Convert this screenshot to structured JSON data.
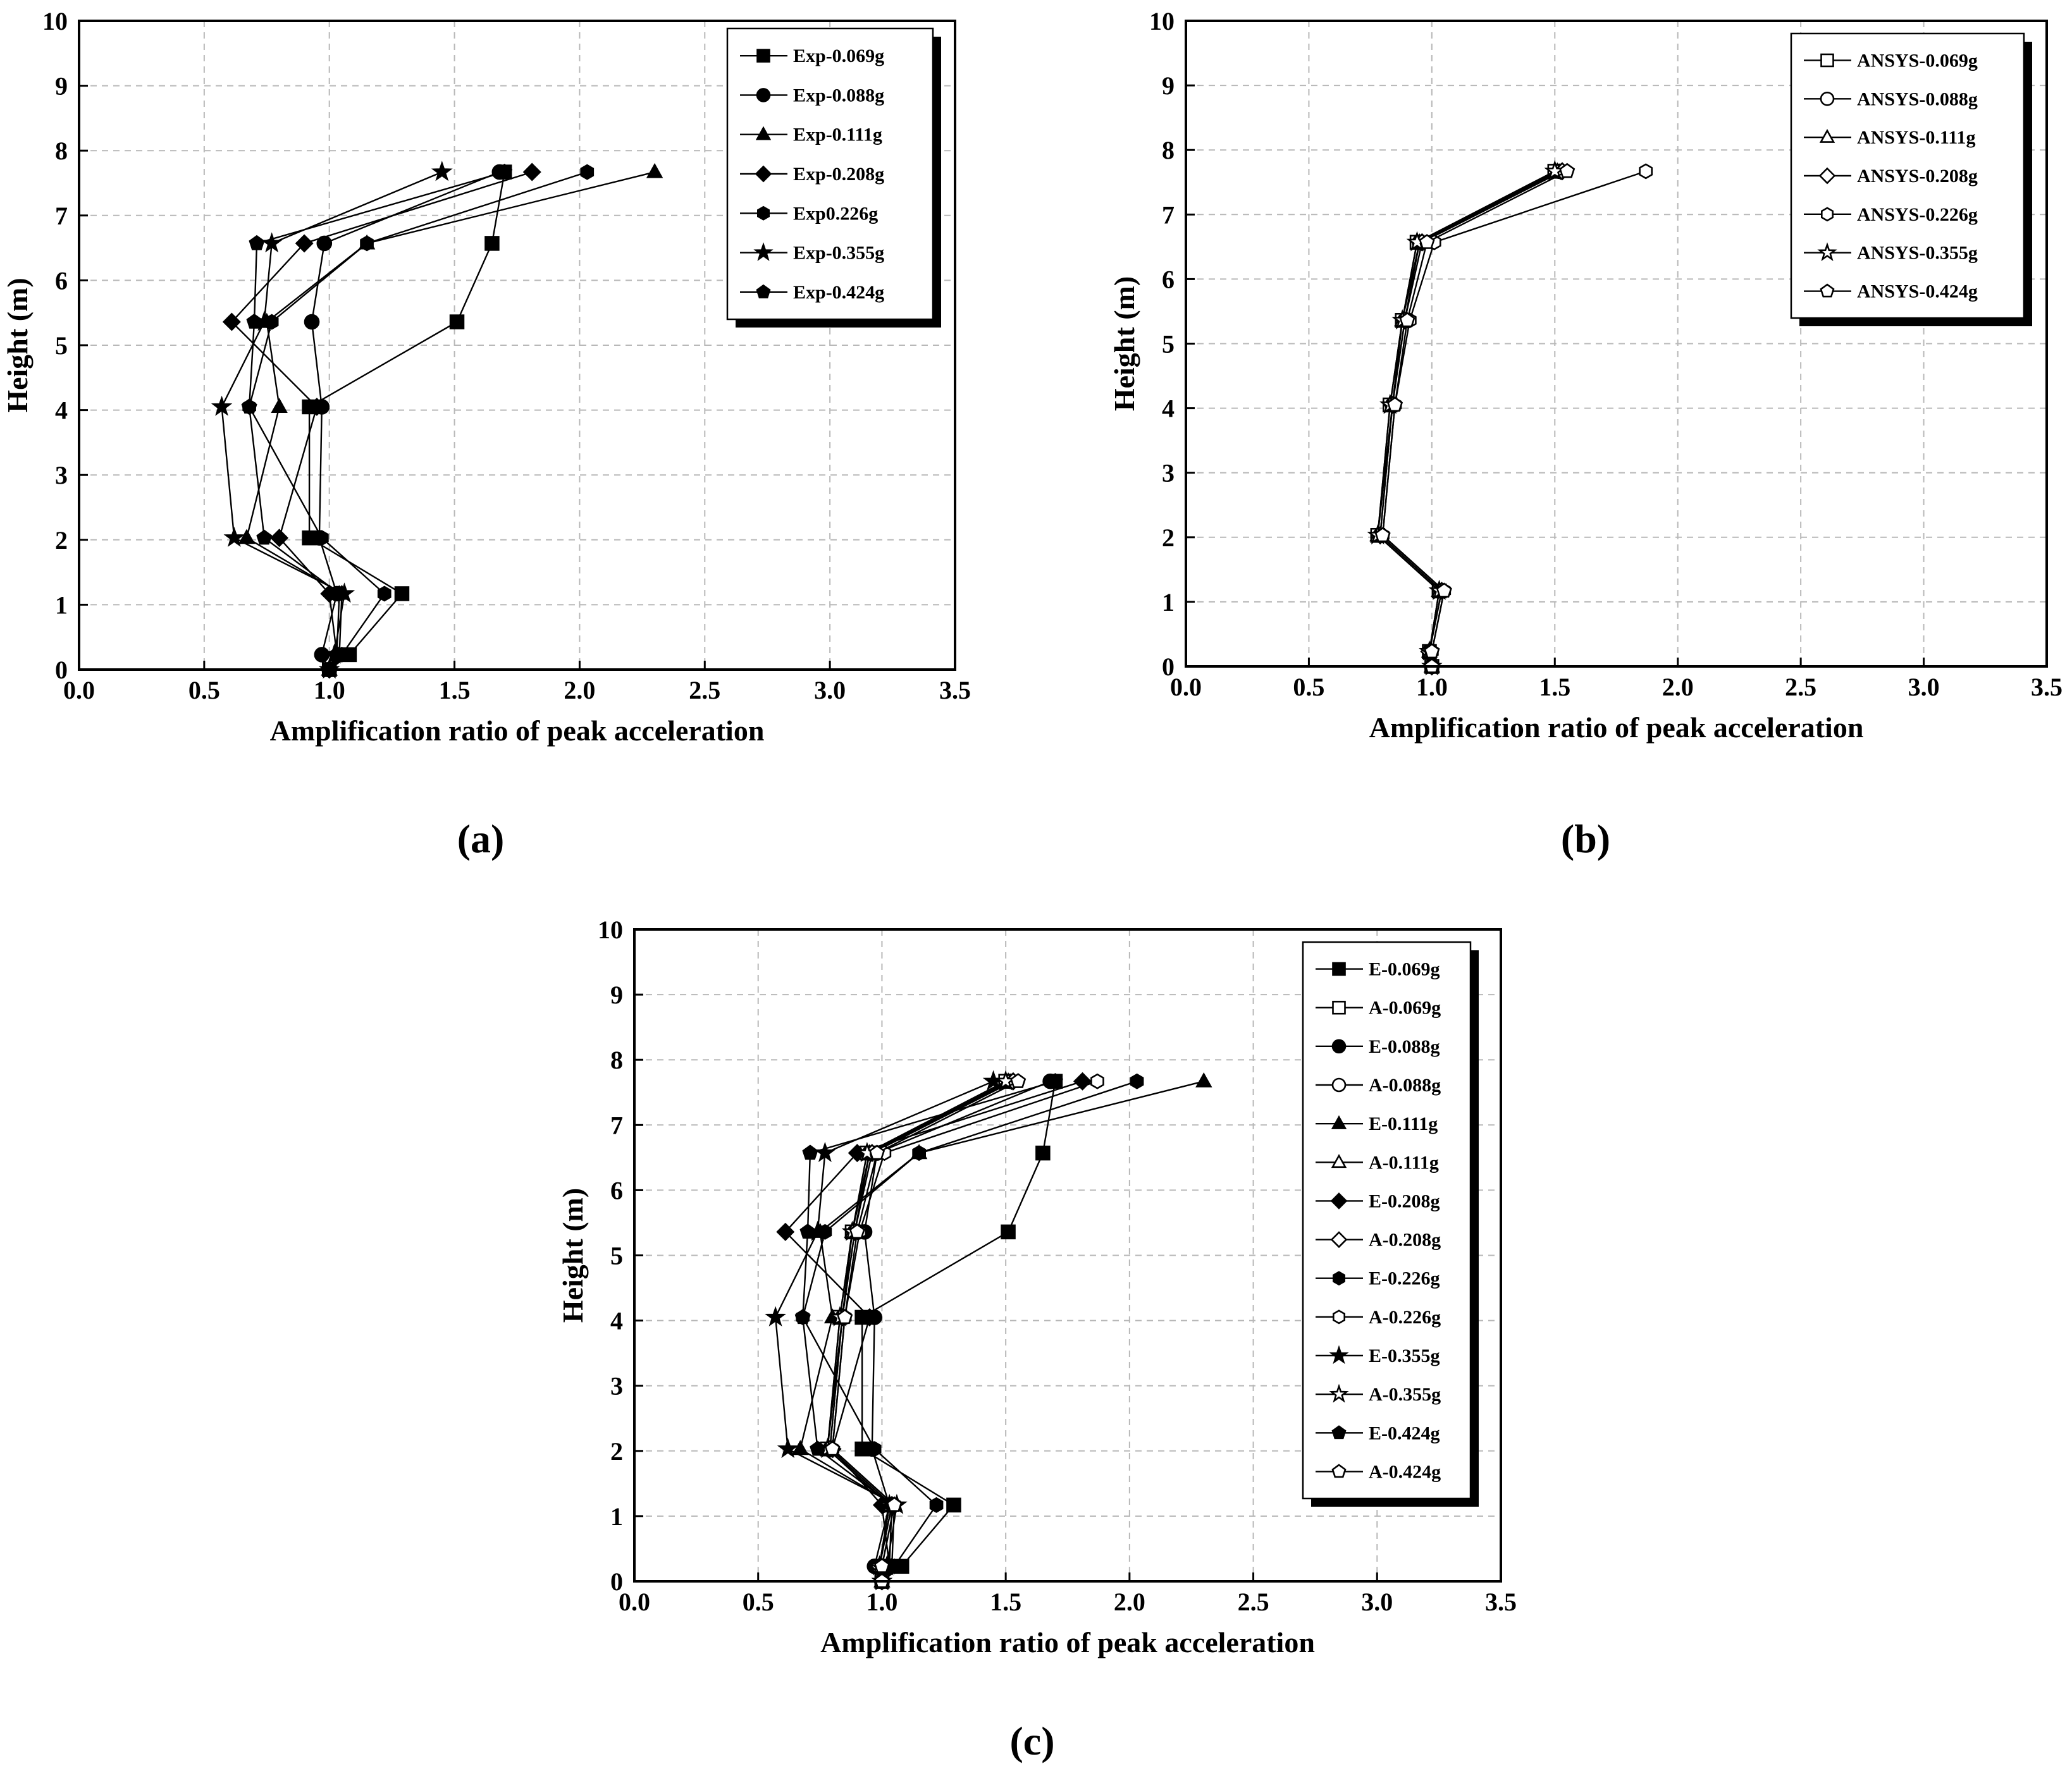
{
  "chart_data": [
    {
      "id": "a",
      "type": "line",
      "caption": "(a)",
      "xlabel": "Amplification ratio of peak acceleration",
      "ylabel": "Height (m)",
      "xlim": [
        0,
        3.5
      ],
      "ylim": [
        0,
        10
      ],
      "xticks": [
        "0.0",
        "0.5",
        "1.0",
        "1.5",
        "2.0",
        "2.5",
        "3.0",
        "3.5"
      ],
      "yticks": [
        "0",
        "1",
        "2",
        "3",
        "4",
        "5",
        "6",
        "7",
        "8",
        "9",
        "10"
      ],
      "grid": true,
      "legend": "top-right",
      "series": [
        {
          "name": "Exp-0.069g",
          "marker": "square",
          "filled": true,
          "x": [
            1.0,
            1.08,
            1.29,
            0.92,
            0.92,
            1.51,
            1.65,
            1.7
          ],
          "y": [
            0.0,
            0.23,
            1.17,
            2.03,
            4.05,
            5.36,
            6.57,
            7.67
          ]
        },
        {
          "name": "Exp-0.088g",
          "marker": "circle",
          "filled": true,
          "x": [
            1.0,
            0.97,
            1.03,
            0.96,
            0.97,
            0.93,
            0.98,
            1.68
          ],
          "y": [
            0.0,
            0.23,
            1.17,
            2.03,
            4.05,
            5.36,
            6.57,
            7.67
          ]
        },
        {
          "name": "Exp-0.111g",
          "marker": "triangle",
          "filled": true,
          "x": [
            1.0,
            1.04,
            1.05,
            0.67,
            0.8,
            0.75,
            1.15,
            2.3
          ],
          "y": [
            0.0,
            0.23,
            1.17,
            2.03,
            4.05,
            5.36,
            6.57,
            7.67
          ]
        },
        {
          "name": "Exp-0.208g",
          "marker": "diamond",
          "filled": true,
          "x": [
            1.0,
            1.03,
            1.0,
            0.8,
            0.95,
            0.61,
            0.9,
            1.81
          ],
          "y": [
            0.0,
            0.23,
            1.17,
            2.03,
            4.05,
            5.36,
            6.57,
            7.67
          ]
        },
        {
          "name": "Exp0.226g",
          "marker": "hexagon",
          "filled": true,
          "x": [
            1.0,
            1.05,
            1.22,
            0.97,
            0.68,
            0.77,
            1.15,
            2.03
          ],
          "y": [
            0.0,
            0.23,
            1.17,
            2.03,
            4.05,
            5.36,
            6.57,
            7.67
          ]
        },
        {
          "name": "Exp-0.355g",
          "marker": "star",
          "filled": true,
          "x": [
            1.0,
            1.02,
            1.06,
            0.62,
            0.57,
            0.74,
            0.77,
            1.45
          ],
          "y": [
            0.0,
            0.23,
            1.17,
            2.03,
            4.05,
            5.36,
            6.57,
            7.67
          ]
        },
        {
          "name": "Exp-0.424g",
          "marker": "pentagon",
          "filled": true,
          "x": [
            1.0,
            1.03,
            1.04,
            0.74,
            0.68,
            0.7,
            0.71,
            1.7
          ],
          "y": [
            0.0,
            0.23,
            1.17,
            2.03,
            4.05,
            5.36,
            6.57,
            7.67
          ]
        }
      ]
    },
    {
      "id": "b",
      "type": "line",
      "caption": "(b)",
      "xlabel": "Amplification ratio of peak acceleration",
      "ylabel": "Height (m)",
      "xlim": [
        0,
        3.5
      ],
      "ylim": [
        0,
        10
      ],
      "xticks": [
        "0.0",
        "0.5",
        "1.0",
        "1.5",
        "2.0",
        "2.5",
        "3.0",
        "3.5"
      ],
      "yticks": [
        "0",
        "1",
        "2",
        "3",
        "4",
        "5",
        "6",
        "7",
        "8",
        "9",
        "10"
      ],
      "grid": true,
      "legend": "top-right",
      "series": [
        {
          "name": "ANSYS-0.069g",
          "marker": "square",
          "filled": false,
          "x": [
            1.0,
            0.99,
            1.03,
            0.78,
            0.83,
            0.88,
            0.94,
            1.5
          ],
          "y": [
            0.0,
            0.23,
            1.17,
            2.03,
            4.05,
            5.36,
            6.57,
            7.67
          ]
        },
        {
          "name": "ANSYS-0.088g",
          "marker": "circle",
          "filled": false,
          "x": [
            1.0,
            0.99,
            1.04,
            0.79,
            0.84,
            0.89,
            0.95,
            1.52
          ],
          "y": [
            0.0,
            0.23,
            1.17,
            2.03,
            4.05,
            5.36,
            6.57,
            7.67
          ]
        },
        {
          "name": "ANSYS-0.111g",
          "marker": "triangle",
          "filled": false,
          "x": [
            1.0,
            0.99,
            1.03,
            0.78,
            0.84,
            0.88,
            0.95,
            1.51
          ],
          "y": [
            0.0,
            0.23,
            1.17,
            2.03,
            4.05,
            5.36,
            6.57,
            7.67
          ]
        },
        {
          "name": "ANSYS-0.208g",
          "marker": "diamond",
          "filled": false,
          "x": [
            1.0,
            0.99,
            1.04,
            0.79,
            0.84,
            0.89,
            0.96,
            1.53
          ],
          "y": [
            0.0,
            0.23,
            1.17,
            2.03,
            4.05,
            5.36,
            6.57,
            7.67
          ]
        },
        {
          "name": "ANSYS-0.226g",
          "marker": "hexagon",
          "filled": false,
          "x": [
            1.0,
            1.0,
            1.05,
            0.8,
            0.85,
            0.91,
            1.01,
            1.87
          ],
          "y": [
            0.0,
            0.23,
            1.17,
            2.03,
            4.05,
            5.36,
            6.57,
            7.67
          ]
        },
        {
          "name": "ANSYS-0.355g",
          "marker": "star",
          "filled": false,
          "x": [
            1.0,
            0.99,
            1.03,
            0.78,
            0.83,
            0.88,
            0.94,
            1.5
          ],
          "y": [
            0.0,
            0.23,
            1.17,
            2.03,
            4.05,
            5.36,
            6.57,
            7.67
          ]
        },
        {
          "name": "ANSYS-0.424g",
          "marker": "pentagon",
          "filled": false,
          "x": [
            1.0,
            1.0,
            1.05,
            0.8,
            0.85,
            0.9,
            0.98,
            1.55
          ],
          "y": [
            0.0,
            0.23,
            1.17,
            2.03,
            4.05,
            5.36,
            6.57,
            7.67
          ]
        }
      ]
    },
    {
      "id": "c",
      "type": "line",
      "caption": "(c)",
      "xlabel": "Amplification ratio of peak acceleration",
      "ylabel": "Height (m)",
      "xlim": [
        0,
        3.5
      ],
      "ylim": [
        0,
        10
      ],
      "xticks": [
        "0.0",
        "0.5",
        "1.0",
        "1.5",
        "2.0",
        "2.5",
        "3.0",
        "3.5"
      ],
      "yticks": [
        "0",
        "1",
        "2",
        "3",
        "4",
        "5",
        "6",
        "7",
        "8",
        "9",
        "10"
      ],
      "grid": true,
      "legend": "top-right",
      "series": [
        {
          "name": "E-0.069g",
          "marker": "square",
          "filled": true,
          "x": [
            1.0,
            1.08,
            1.29,
            0.92,
            0.92,
            1.51,
            1.65,
            1.7
          ],
          "y": [
            0.0,
            0.23,
            1.17,
            2.03,
            4.05,
            5.36,
            6.57,
            7.67
          ]
        },
        {
          "name": "A-0.069g",
          "marker": "square",
          "filled": false,
          "x": [
            1.0,
            0.99,
            1.03,
            0.78,
            0.83,
            0.88,
            0.94,
            1.5
          ],
          "y": [
            0.0,
            0.23,
            1.17,
            2.03,
            4.05,
            5.36,
            6.57,
            7.67
          ]
        },
        {
          "name": "E-0.088g",
          "marker": "circle",
          "filled": true,
          "x": [
            1.0,
            0.97,
            1.03,
            0.96,
            0.97,
            0.93,
            0.98,
            1.68
          ],
          "y": [
            0.0,
            0.23,
            1.17,
            2.03,
            4.05,
            5.36,
            6.57,
            7.67
          ]
        },
        {
          "name": "A-0.088g",
          "marker": "circle",
          "filled": false,
          "x": [
            1.0,
            0.99,
            1.04,
            0.79,
            0.84,
            0.89,
            0.95,
            1.52
          ],
          "y": [
            0.0,
            0.23,
            1.17,
            2.03,
            4.05,
            5.36,
            6.57,
            7.67
          ]
        },
        {
          "name": "E-0.111g",
          "marker": "triangle",
          "filled": true,
          "x": [
            1.0,
            1.04,
            1.05,
            0.67,
            0.8,
            0.75,
            1.15,
            2.3
          ],
          "y": [
            0.0,
            0.23,
            1.17,
            2.03,
            4.05,
            5.36,
            6.57,
            7.67
          ]
        },
        {
          "name": "A-0.111g",
          "marker": "triangle",
          "filled": false,
          "x": [
            1.0,
            0.99,
            1.03,
            0.78,
            0.84,
            0.88,
            0.95,
            1.51
          ],
          "y": [
            0.0,
            0.23,
            1.17,
            2.03,
            4.05,
            5.36,
            6.57,
            7.67
          ]
        },
        {
          "name": "E-0.208g",
          "marker": "diamond",
          "filled": true,
          "x": [
            1.0,
            1.03,
            1.0,
            0.8,
            0.95,
            0.61,
            0.9,
            1.81
          ],
          "y": [
            0.0,
            0.23,
            1.17,
            2.03,
            4.05,
            5.36,
            6.57,
            7.67
          ]
        },
        {
          "name": "A-0.208g",
          "marker": "diamond",
          "filled": false,
          "x": [
            1.0,
            0.99,
            1.04,
            0.79,
            0.84,
            0.89,
            0.96,
            1.53
          ],
          "y": [
            0.0,
            0.23,
            1.17,
            2.03,
            4.05,
            5.36,
            6.57,
            7.67
          ]
        },
        {
          "name": "E-0.226g",
          "marker": "hexagon",
          "filled": true,
          "x": [
            1.0,
            1.05,
            1.22,
            0.97,
            0.68,
            0.77,
            1.15,
            2.03
          ],
          "y": [
            0.0,
            0.23,
            1.17,
            2.03,
            4.05,
            5.36,
            6.57,
            7.67
          ]
        },
        {
          "name": "A-0.226g",
          "marker": "hexagon",
          "filled": false,
          "x": [
            1.0,
            1.0,
            1.05,
            0.8,
            0.85,
            0.91,
            1.01,
            1.87
          ],
          "y": [
            0.0,
            0.23,
            1.17,
            2.03,
            4.05,
            5.36,
            6.57,
            7.67
          ]
        },
        {
          "name": "E-0.355g",
          "marker": "star",
          "filled": true,
          "x": [
            1.0,
            1.02,
            1.06,
            0.62,
            0.57,
            0.74,
            0.77,
            1.45
          ],
          "y": [
            0.0,
            0.23,
            1.17,
            2.03,
            4.05,
            5.36,
            6.57,
            7.67
          ]
        },
        {
          "name": "A-0.355g",
          "marker": "star",
          "filled": false,
          "x": [
            1.0,
            0.99,
            1.03,
            0.78,
            0.83,
            0.88,
            0.94,
            1.5
          ],
          "y": [
            0.0,
            0.23,
            1.17,
            2.03,
            4.05,
            5.36,
            6.57,
            7.67
          ]
        },
        {
          "name": "E-0.424g",
          "marker": "pentagon",
          "filled": true,
          "x": [
            1.0,
            1.03,
            1.04,
            0.74,
            0.68,
            0.7,
            0.71,
            1.7
          ],
          "y": [
            0.0,
            0.23,
            1.17,
            2.03,
            4.05,
            5.36,
            6.57,
            7.67
          ]
        },
        {
          "name": "A-0.424g",
          "marker": "pentagon",
          "filled": false,
          "x": [
            1.0,
            1.0,
            1.05,
            0.8,
            0.85,
            0.9,
            0.98,
            1.55
          ],
          "y": [
            0.0,
            0.23,
            1.17,
            2.03,
            4.05,
            5.36,
            6.57,
            7.67
          ]
        }
      ]
    }
  ]
}
